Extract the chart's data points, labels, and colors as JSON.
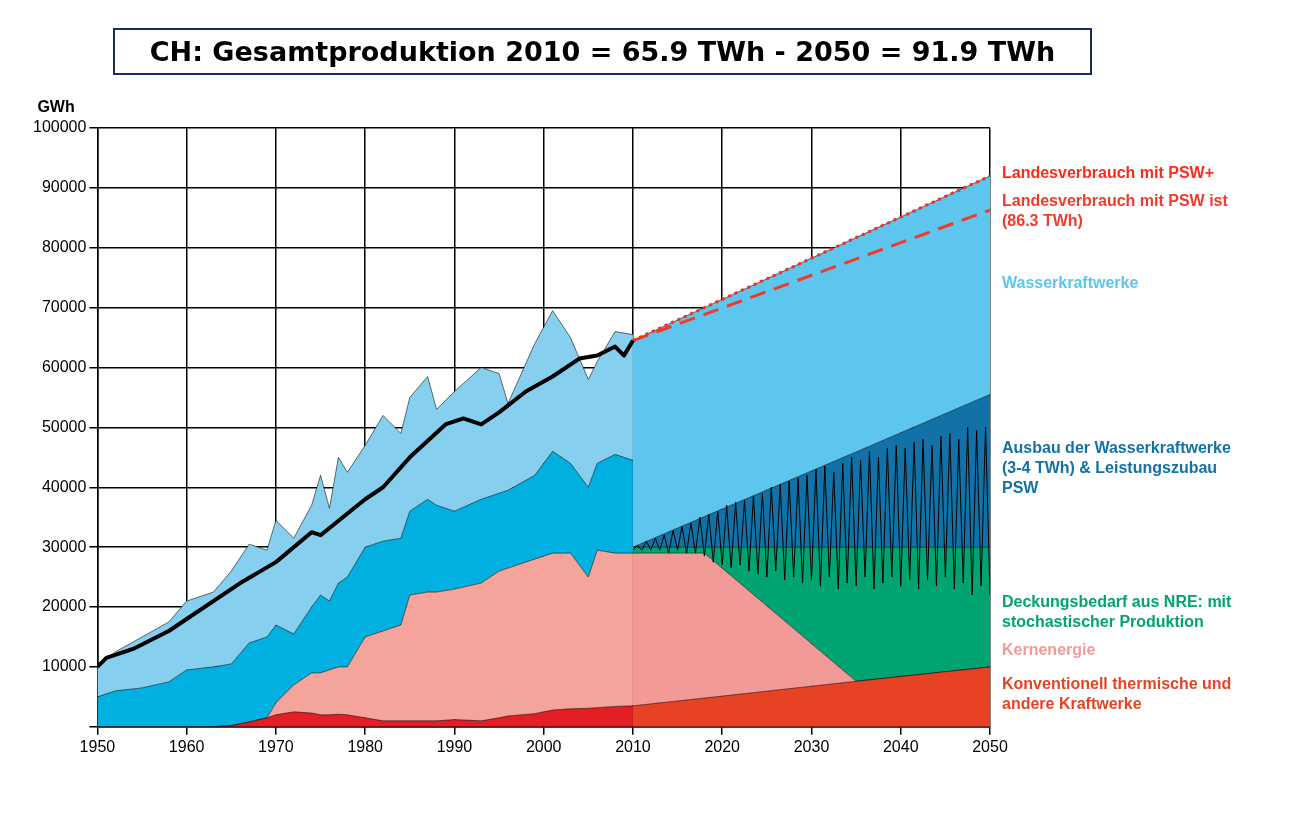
{
  "chart_data": {
    "type": "area",
    "title": "CH: Gesamtproduktion 2010 = 65.9 TWh - 2050 = 91.9 TWh",
    "ylabel": "GWh",
    "x": [
      1950,
      1952,
      1955,
      1958,
      1960,
      1963,
      1965,
      1967,
      1969,
      1970,
      1972,
      1974,
      1975,
      1976,
      1977,
      1978,
      1980,
      1982,
      1984,
      1985,
      1987,
      1988,
      1990,
      1993,
      1995,
      1996,
      1999,
      2001,
      2003,
      2005,
      2006,
      2008,
      2010
    ],
    "xlim": [
      1950,
      2050
    ],
    "xticks": [
      1950,
      1960,
      1970,
      1980,
      1990,
      2000,
      2010,
      2020,
      2030,
      2040,
      2050
    ],
    "ylim": [
      0,
      100000
    ],
    "yticks": [
      {
        "value": 0,
        "label": null
      },
      10000,
      20000,
      30000,
      40000,
      50000,
      60000,
      70000,
      80000,
      90000,
      100000
    ],
    "grid": true,
    "legend": false,
    "marker": "none",
    "series": [
      {
        "color": "#e31e24",
        "values": [
          0,
          0,
          0,
          0,
          0,
          0,
          200,
          800,
          1500,
          2000,
          2500,
          2300,
          2000,
          2000,
          2100,
          2000,
          1500,
          1000,
          1000,
          1000,
          1000,
          1000,
          1200,
          1000,
          1500,
          1800,
          2200,
          2800,
          3000,
          3100,
          3200,
          3400,
          3500
        ]
      },
      {
        "color": "#f4a49a",
        "values": [
          0,
          0,
          0,
          0,
          0,
          0,
          200,
          800,
          1500,
          4000,
          7000,
          9000,
          9000,
          9500,
          10000,
          10000,
          15000,
          16000,
          17000,
          22000,
          22500,
          22500,
          23000,
          24000,
          26000,
          26500,
          28000,
          29000,
          29000,
          25000,
          29500,
          29000,
          29000
        ]
      },
      {
        "color": "#00b0e0",
        "values": [
          5000,
          6000,
          6500,
          7500,
          9500,
          10000,
          10500,
          14000,
          15000,
          17000,
          15500,
          20000,
          22000,
          21000,
          24000,
          25000,
          30000,
          31000,
          31500,
          36000,
          38000,
          37000,
          36000,
          38000,
          39000,
          39500,
          42000,
          46000,
          44000,
          40000,
          44000,
          45500,
          44500
        ]
      },
      {
        "color": "#87cfee",
        "values": [
          10000,
          12500,
          15000,
          17500,
          21000,
          22500,
          26000,
          30500,
          29500,
          34500,
          31500,
          37000,
          42000,
          36500,
          45000,
          42500,
          47000,
          52000,
          49000,
          55000,
          58500,
          53000,
          56000,
          60000,
          59000,
          54000,
          64000,
          69500,
          65000,
          58000,
          61000,
          66000,
          65500
        ]
      },
      {
        "name": "Konventionell thermische und andere Kraftwerke",
        "color": "#e84224",
        "x": [
          2010,
          2018,
          2035,
          2050
        ],
        "values": [
          3500,
          4800,
          7600,
          10000
        ]
      },
      {
        "name": "Kernenergie",
        "color": "#f19a98",
        "x": [
          2010,
          2018,
          2035,
          2050
        ],
        "values": [
          29000,
          29000,
          7600,
          10000
        ]
      },
      {
        "name": "Deckungsbedarf aus NRE: mit stochastischer Produktion",
        "color": "#00a472",
        "x": [
          2010,
          2018,
          2035,
          2050
        ],
        "values": [
          30000,
          30000,
          30000,
          30000
        ]
      },
      {
        "name": "Ausbau der Wasserkraftwerke (3-4 TWh) & Leistungszubau PSW",
        "color": "#1272a8",
        "x": [
          2010,
          2018,
          2035,
          2050
        ],
        "values": [
          30000,
          35100,
          45900,
          55500
        ]
      },
      {
        "name": "Wasserkraftwerke",
        "color": "#5cc6ee",
        "x": [
          2010,
          2018,
          2035,
          2050
        ],
        "values": [
          64500,
          70000,
          81700,
          92000
        ]
      },
      {
        "type": "line",
        "color": "#000000",
        "line_style": "solid",
        "x": [
          1950,
          1951,
          1954,
          1958,
          1960,
          1966,
          1970,
          1974,
          1975,
          1980,
          1982,
          1985,
          1989,
          1991,
          1993,
          1995,
          1998,
          2001,
          2004,
          2006,
          2008,
          2009,
          2010
        ],
        "values": [
          10000,
          11500,
          13000,
          16000,
          18000,
          24000,
          27500,
          32500,
          32000,
          38000,
          40000,
          45000,
          50500,
          51500,
          50500,
          52500,
          56000,
          58500,
          61500,
          62000,
          63500,
          62000,
          64500
        ]
      },
      {
        "type": "line",
        "color": "#000000",
        "line_style": "solid",
        "x": [
          2010,
          2010.5,
          2011,
          2011.5,
          2012,
          2012.5,
          2013,
          2013.5,
          2014,
          2014.5,
          2015,
          2015.5,
          2016,
          2016.5,
          2017,
          2017.5,
          2018,
          2018.5,
          2019,
          2019.5,
          2020,
          2020.5,
          2021,
          2021.5,
          2022,
          2022.5,
          2023,
          2023.5,
          2024,
          2024.5,
          2025,
          2025.5,
          2026,
          2026.5,
          2027,
          2027.5,
          2028,
          2028.5,
          2029,
          2029.5,
          2030,
          2030.5,
          2031,
          2031.5,
          2032,
          2032.5,
          2033,
          2033.5,
          2034,
          2034.5,
          2035,
          2035.5,
          2036,
          2036.5,
          2037,
          2037.5,
          2038,
          2038.5,
          2039,
          2039.5,
          2040,
          2040.5,
          2041,
          2041.5,
          2042,
          2042.5,
          2043,
          2043.5,
          2044,
          2044.5,
          2045,
          2045.5,
          2046,
          2046.5,
          2047,
          2047.5,
          2048,
          2048.5,
          2049,
          2049.5,
          2050
        ],
        "values": [
          29500,
          30300,
          29500,
          31000,
          29500,
          31500,
          29500,
          32000,
          29000,
          32800,
          29500,
          33500,
          29000,
          34000,
          29000,
          35000,
          28500,
          35500,
          27500,
          36000,
          27000,
          37000,
          26500,
          37500,
          27000,
          37800,
          26000,
          38500,
          25500,
          39000,
          25000,
          40000,
          26000,
          40500,
          24500,
          41000,
          25000,
          41500,
          24000,
          42000,
          24500,
          43000,
          23500,
          43500,
          25000,
          42500,
          23000,
          44000,
          24000,
          45000,
          23500,
          44500,
          25000,
          46000,
          23000,
          45000,
          24000,
          46500,
          25000,
          47000,
          23500,
          46500,
          24500,
          47500,
          23000,
          48000,
          24500,
          47000,
          23500,
          48500,
          25000,
          49000,
          23000,
          48000,
          24000,
          50000,
          22000,
          49500,
          23500,
          50000,
          22000
        ]
      },
      {
        "type": "line",
        "name": "Landesverbrauch mit PSW+",
        "color": "#ff2a1a",
        "line_style": "dotted",
        "x": [
          2010,
          2050
        ],
        "values": [
          64500,
          92000
        ]
      },
      {
        "type": "line",
        "name": "Landesverbrauch mit PSW ist (86.3 TWh)",
        "color": "#f23a2a",
        "line_style": "dashed",
        "x": [
          2010,
          2050
        ],
        "values": [
          64500,
          86300
        ]
      }
    ]
  }
}
